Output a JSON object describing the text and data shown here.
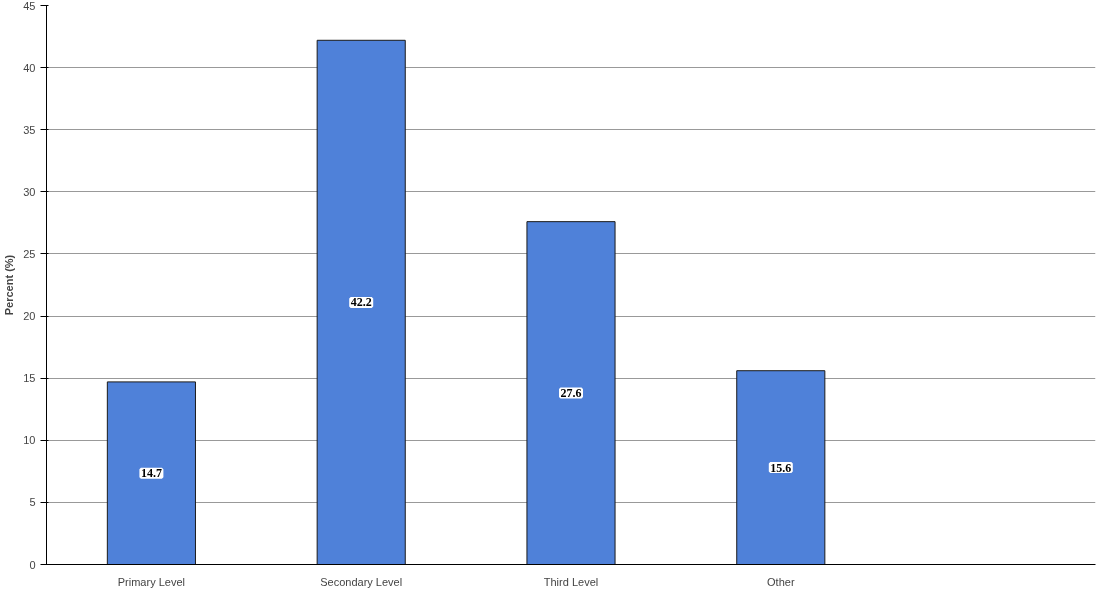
{
  "chart_data": {
    "type": "bar",
    "ylabel": "Percent (%)",
    "categories": [
      "Primary Level",
      "Secondary Level",
      "Third Level",
      "Other",
      null
    ],
    "values": [
      14.7,
      42.2,
      27.6,
      15.6,
      null
    ],
    "color": "#4f81d9",
    "ylim": [
      0,
      45
    ],
    "yticks": [
      0,
      5,
      10,
      15,
      20,
      25,
      30,
      35,
      40,
      45
    ],
    "grid": "y",
    "data_labels": true
  }
}
